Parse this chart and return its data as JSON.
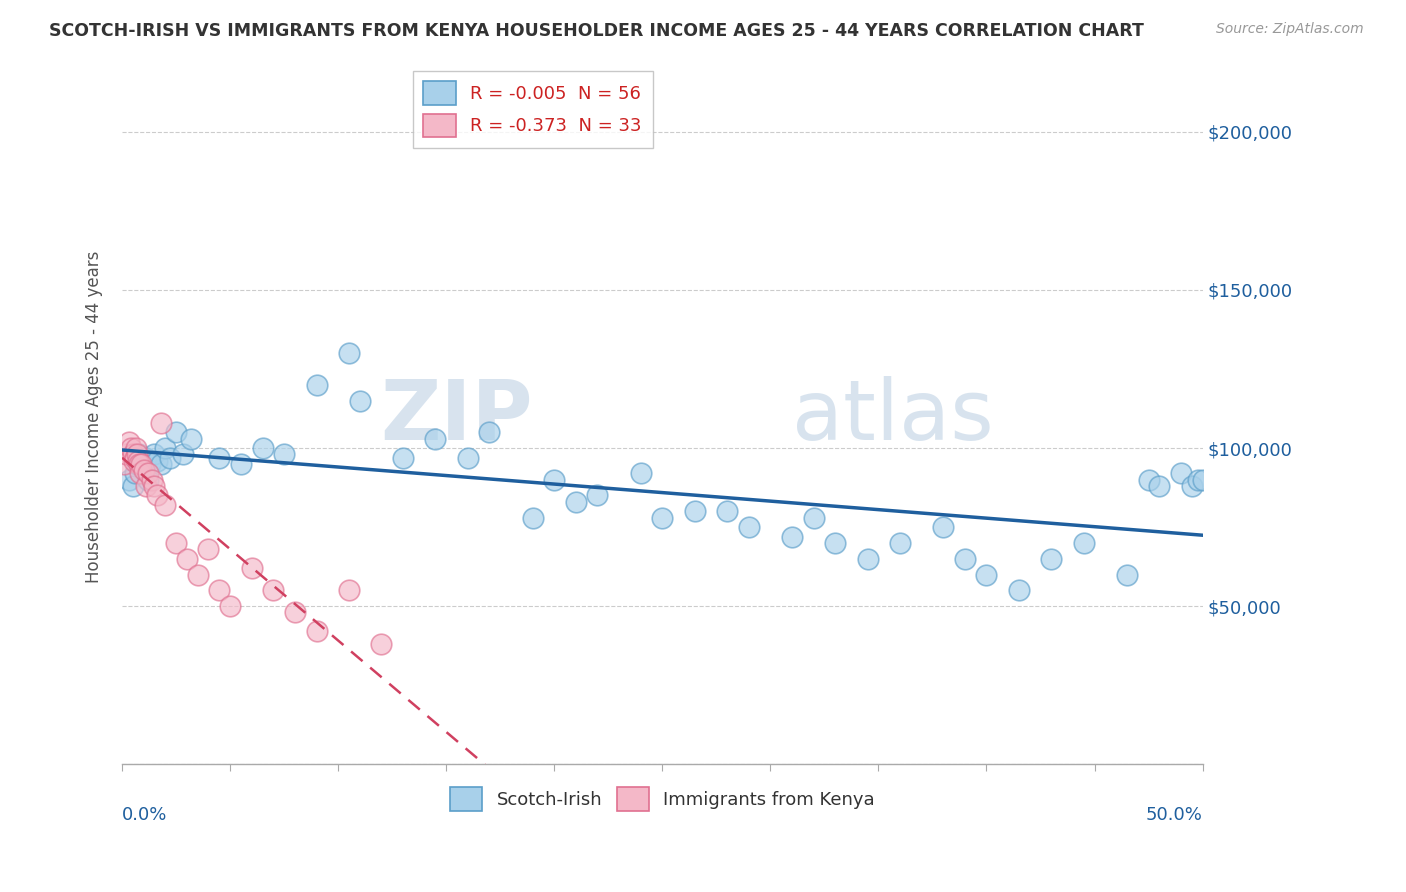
{
  "title": "SCOTCH-IRISH VS IMMIGRANTS FROM KENYA HOUSEHOLDER INCOME AGES 25 - 44 YEARS CORRELATION CHART",
  "source": "Source: ZipAtlas.com",
  "ylabel": "Householder Income Ages 25 - 44 years",
  "watermark_ZIP": "ZIP",
  "watermark_atlas": "atlas",
  "legend1_label": "R = -0.005  N = 56",
  "legend2_label": "R = -0.373  N = 33",
  "blue_face": "#a8d0ea",
  "blue_edge": "#5b9ec9",
  "blue_line_color": "#1f5f9e",
  "pink_face": "#f4b8c8",
  "pink_edge": "#e07090",
  "pink_line_color": "#d04060",
  "scotch_irish_x": [
    0.3,
    0.5,
    0.6,
    0.7,
    0.8,
    0.9,
    1.0,
    1.1,
    1.2,
    1.3,
    1.5,
    1.6,
    1.8,
    2.0,
    2.2,
    2.5,
    2.8,
    3.2,
    4.5,
    5.5,
    6.5,
    7.5,
    9.0,
    10.5,
    11.0,
    13.0,
    14.5,
    16.0,
    17.0,
    19.0,
    20.0,
    21.0,
    22.0,
    24.0,
    25.0,
    26.5,
    28.0,
    29.0,
    31.0,
    32.0,
    33.0,
    34.5,
    36.0,
    38.0,
    39.0,
    40.0,
    41.5,
    43.0,
    44.5,
    46.5,
    47.5,
    48.0,
    49.0,
    49.5,
    49.8,
    50.0
  ],
  "scotch_irish_y": [
    90000,
    88000,
    92000,
    95000,
    98000,
    96000,
    94000,
    97000,
    90000,
    95000,
    98000,
    96000,
    95000,
    100000,
    97000,
    105000,
    98000,
    103000,
    97000,
    95000,
    100000,
    98000,
    120000,
    130000,
    115000,
    97000,
    103000,
    97000,
    105000,
    78000,
    90000,
    83000,
    85000,
    92000,
    78000,
    80000,
    80000,
    75000,
    72000,
    78000,
    70000,
    65000,
    70000,
    75000,
    65000,
    60000,
    55000,
    65000,
    70000,
    60000,
    90000,
    88000,
    92000,
    88000,
    90000,
    90000
  ],
  "kenya_x": [
    0.1,
    0.2,
    0.3,
    0.4,
    0.5,
    0.55,
    0.6,
    0.65,
    0.7,
    0.75,
    0.8,
    0.85,
    0.9,
    1.0,
    1.1,
    1.2,
    1.4,
    1.5,
    1.6,
    1.8,
    2.0,
    2.5,
    3.0,
    3.5,
    4.0,
    4.5,
    5.0,
    6.0,
    7.0,
    8.0,
    9.0,
    10.5,
    12.0
  ],
  "kenya_y": [
    95000,
    98000,
    102000,
    100000,
    98000,
    96000,
    97000,
    100000,
    98000,
    96000,
    95000,
    92000,
    95000,
    93000,
    88000,
    92000,
    90000,
    88000,
    85000,
    108000,
    82000,
    70000,
    65000,
    60000,
    68000,
    55000,
    50000,
    62000,
    55000,
    48000,
    42000,
    55000,
    38000
  ],
  "xlim": [
    0,
    50
  ],
  "ylim": [
    0,
    220000
  ],
  "yticks": [
    0,
    50000,
    100000,
    150000,
    200000
  ],
  "ytick_labels": [
    "",
    "$50,000",
    "$100,000",
    "$150,000",
    "$200,000"
  ]
}
